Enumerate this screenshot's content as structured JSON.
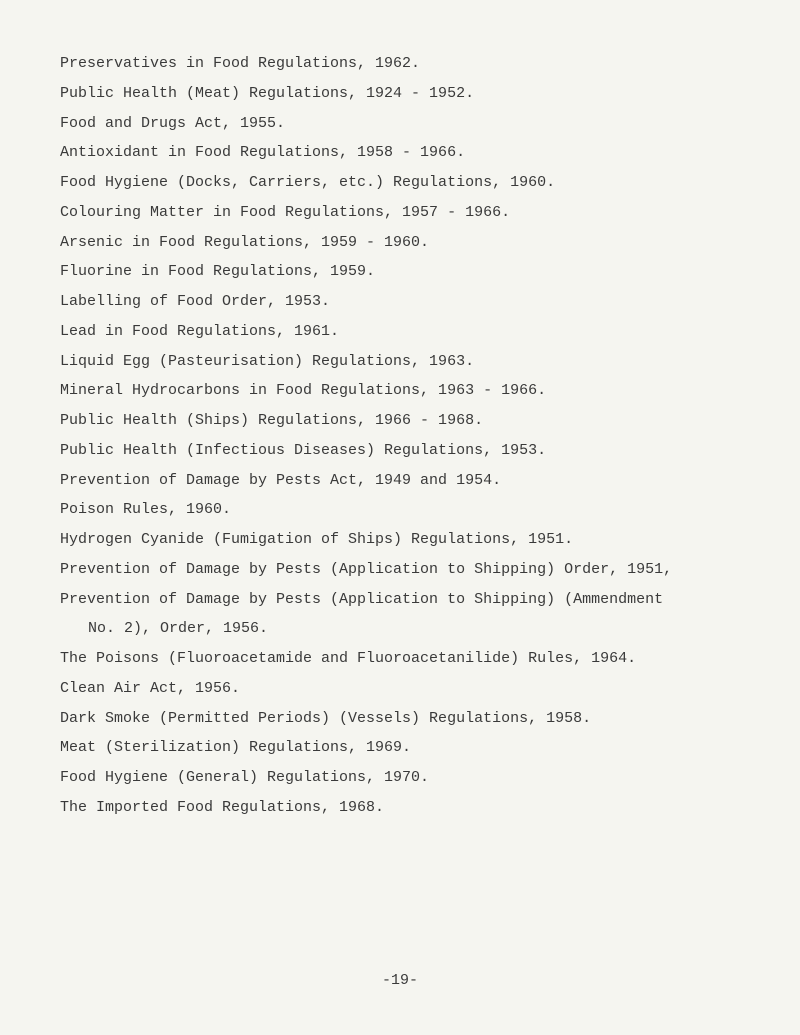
{
  "lines": [
    {
      "text": "Preservatives in Food Regulations, 1962.",
      "indent": false
    },
    {
      "text": "Public Health (Meat) Regulations, 1924 - 1952.",
      "indent": false
    },
    {
      "text": "Food and Drugs Act, 1955.",
      "indent": false
    },
    {
      "text": "Antioxidant in Food Regulations, 1958 - 1966.",
      "indent": false
    },
    {
      "text": "Food Hygiene (Docks, Carriers, etc.) Regulations, 1960.",
      "indent": false
    },
    {
      "text": "Colouring Matter in Food Regulations, 1957 - 1966.",
      "indent": false
    },
    {
      "text": "Arsenic in Food Regulations, 1959 - 1960.",
      "indent": false
    },
    {
      "text": "Fluorine in Food Regulations, 1959.",
      "indent": false
    },
    {
      "text": "Labelling of Food Order, 1953.",
      "indent": false
    },
    {
      "text": "Lead in Food Regulations, 1961.",
      "indent": false
    },
    {
      "text": "Liquid Egg (Pasteurisation) Regulations, 1963.",
      "indent": false
    },
    {
      "text": "Mineral Hydrocarbons in Food Regulations, 1963 - 1966.",
      "indent": false
    },
    {
      "text": "Public Health (Ships) Regulations, 1966 - 1968.",
      "indent": false
    },
    {
      "text": "Public Health (Infectious Diseases) Regulations, 1953.",
      "indent": false
    },
    {
      "text": "Prevention of Damage by Pests Act, 1949 and 1954.",
      "indent": false
    },
    {
      "text": "Poison Rules, 1960.",
      "indent": false
    },
    {
      "text": "Hydrogen Cyanide (Fumigation of Ships) Regulations, 1951.",
      "indent": false
    },
    {
      "text": "Prevention of Damage by Pests (Application to Shipping) Order, 1951,",
      "indent": false
    },
    {
      "text": "Prevention of Damage by Pests (Application to Shipping) (Ammendment",
      "indent": false
    },
    {
      "text": "No. 2), Order, 1956.",
      "indent": true
    },
    {
      "text": "The Poisons (Fluoroacetamide and Fluoroacetanilide) Rules, 1964.",
      "indent": false
    },
    {
      "text": "Clean Air Act, 1956.",
      "indent": false
    },
    {
      "text": "Dark Smoke (Permitted Periods) (Vessels) Regulations, 1958.",
      "indent": false
    },
    {
      "text": "Meat (Sterilization) Regulations, 1969.",
      "indent": false
    },
    {
      "text": "Food Hygiene (General) Regulations, 1970.",
      "indent": false
    },
    {
      "text": "The Imported Food Regulations, 1968.",
      "indent": false
    }
  ],
  "pageNumber": "-19-",
  "colors": {
    "background": "#f5f5f0",
    "text": "#3a3a3a"
  },
  "typography": {
    "fontFamily": "Courier New",
    "fontSize": 15,
    "lineHeight": 1.85
  }
}
